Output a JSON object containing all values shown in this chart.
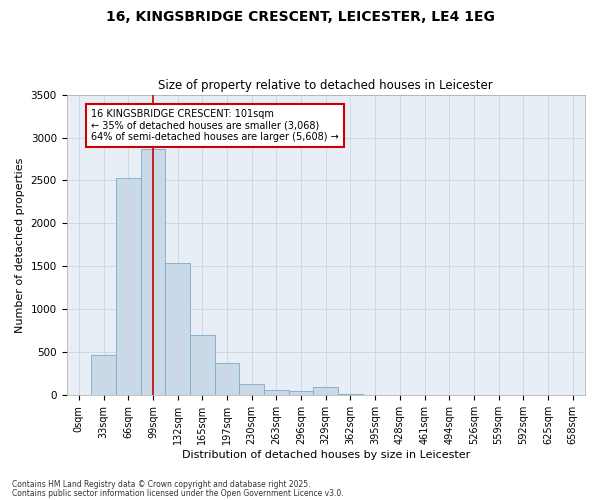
{
  "title_line1": "16, KINGSBRIDGE CRESCENT, LEICESTER, LE4 1EG",
  "title_line2": "Size of property relative to detached houses in Leicester",
  "xlabel": "Distribution of detached houses by size in Leicester",
  "ylabel": "Number of detached properties",
  "bar_labels": [
    "0sqm",
    "33sqm",
    "66sqm",
    "99sqm",
    "132sqm",
    "165sqm",
    "197sqm",
    "230sqm",
    "263sqm",
    "296sqm",
    "329sqm",
    "362sqm",
    "395sqm",
    "428sqm",
    "461sqm",
    "494sqm",
    "526sqm",
    "559sqm",
    "592sqm",
    "625sqm",
    "658sqm"
  ],
  "bar_values": [
    5,
    470,
    2530,
    2870,
    1540,
    700,
    380,
    130,
    65,
    50,
    95,
    20,
    5,
    5,
    2,
    2,
    0,
    0,
    0,
    0,
    0
  ],
  "bar_color": "#c9d9e8",
  "bar_edgecolor": "#7aaac8",
  "vline_x_index": 3,
  "vline_color": "#cc0000",
  "ylim": [
    0,
    3500
  ],
  "yticks": [
    0,
    500,
    1000,
    1500,
    2000,
    2500,
    3000,
    3500
  ],
  "annotation_text": "16 KINGSBRIDGE CRESCENT: 101sqm\n← 35% of detached houses are smaller (3,068)\n64% of semi-detached houses are larger (5,608) →",
  "annotation_box_edgecolor": "#cc0000",
  "annotation_box_facecolor": "#ffffff",
  "footnote_line1": "Contains HM Land Registry data © Crown copyright and database right 2025.",
  "footnote_line2": "Contains public sector information licensed under the Open Government Licence v3.0.",
  "grid_color": "#d0d8e8",
  "background_color": "#e8eef5",
  "fig_width": 6.0,
  "fig_height": 5.0,
  "dpi": 100
}
